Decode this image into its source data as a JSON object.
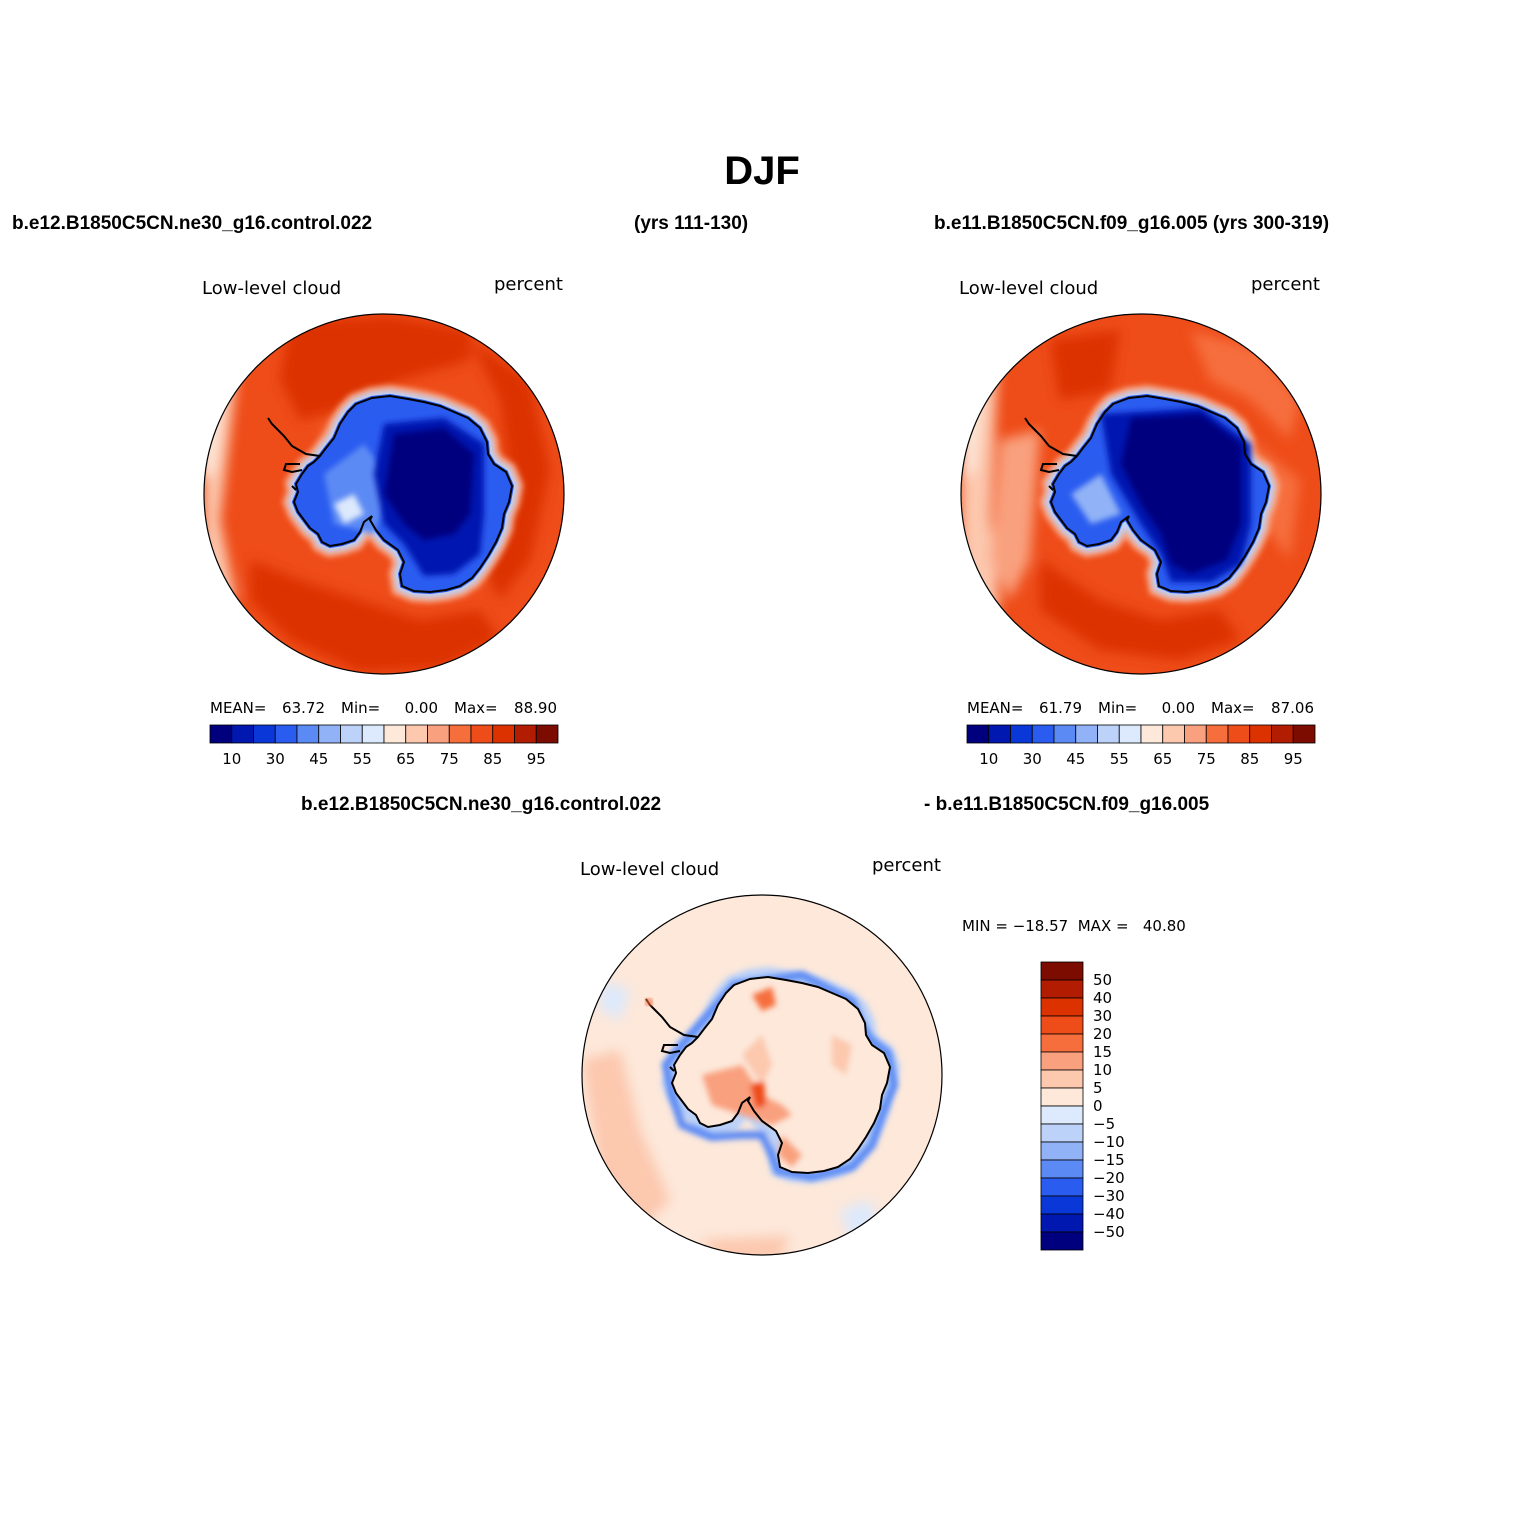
{
  "page_title": "DJF",
  "top_captions": {
    "left_case": "b.e12.B1850C5CN.ne30_g16.control.022",
    "left_years": "(yrs 111-130)",
    "right_case": "b.e11.B1850C5CN.f09_g16.005 (yrs 300-319)"
  },
  "diff_captions": {
    "left": "b.e12.B1850C5CN.ne30_g16.control.022",
    "right": "- b.e11.B1850C5CN.f09_g16.005"
  },
  "panels": {
    "left": {
      "variable": "Low-level cloud",
      "units": "percent",
      "stats": {
        "mean_label": "MEAN=",
        "mean": "63.72",
        "min_label": "Min=",
        "min": "0.00",
        "max_label": "Max=",
        "max": "88.90"
      }
    },
    "right": {
      "variable": "Low-level cloud",
      "units": "percent",
      "stats": {
        "mean_label": "MEAN=",
        "mean": "61.79",
        "min_label": "Min=",
        "min": "0.00",
        "max_label": "Max=",
        "max": "87.06"
      }
    },
    "diff": {
      "variable": "Low-level cloud",
      "units": "percent",
      "minmax_text": "MIN = −18.57  MAX =   40.80"
    }
  },
  "colorbar_horizontal": {
    "colors": [
      "#00007f",
      "#0018b0",
      "#0a38d8",
      "#2a5cf0",
      "#5c8af4",
      "#91b2f6",
      "#bcd2f8",
      "#dde9fc",
      "#fde8da",
      "#fcc8ae",
      "#f9a07e",
      "#f66e3c",
      "#ee4c18",
      "#dc3200",
      "#b21c00",
      "#7c0c00"
    ],
    "labels": [
      "10",
      "30",
      "45",
      "55",
      "65",
      "75",
      "85",
      "95"
    ]
  },
  "colorbar_vertical": {
    "colors": [
      "#7c0c00",
      "#b21c00",
      "#dc3200",
      "#ee4c18",
      "#f66e3c",
      "#f9a07e",
      "#fcc8ae",
      "#fde8da",
      "#dde9fc",
      "#bcd2f8",
      "#91b2f6",
      "#5c8af4",
      "#2a5cf0",
      "#0a38d8",
      "#0018b0",
      "#00007f"
    ],
    "labels": [
      "50",
      "40",
      "30",
      "20",
      "15",
      "10",
      "5",
      "0",
      "−5",
      "−10",
      "−15",
      "−20",
      "−30",
      "−40",
      "−50"
    ]
  }
}
